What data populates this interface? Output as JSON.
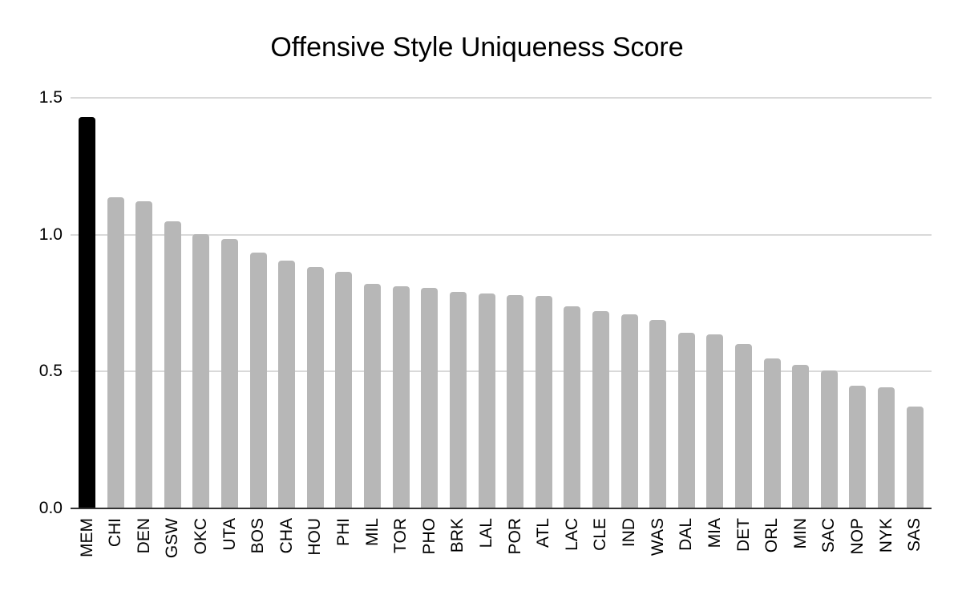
{
  "page": {
    "background": "#ffffff"
  },
  "colors": {
    "highlight_bar": "#000000",
    "bar": "#b7b7b7",
    "gridline": "#d9d9d9",
    "axis_line": "#333333",
    "label_text": "#000000"
  },
  "chart_data": {
    "type": "bar",
    "title": "Offensive Style Uniqueness Score",
    "xlabel": "",
    "ylabel": "",
    "ylim": [
      0,
      1.5
    ],
    "grid": true,
    "legend": false,
    "highlighted_category": "MEM",
    "yticks": [
      {
        "label": "0.0",
        "value": 0.0
      },
      {
        "label": "0.5",
        "value": 0.5
      },
      {
        "label": "1.0",
        "value": 1.0
      },
      {
        "label": "1.5",
        "value": 1.5
      }
    ],
    "categories": [
      "MEM",
      "CHI",
      "DEN",
      "GSW",
      "OKC",
      "UTA",
      "BOS",
      "CHA",
      "HOU",
      "PHI",
      "MIL",
      "TOR",
      "PHO",
      "BRK",
      "LAL",
      "POR",
      "ATL",
      "LAC",
      "CLE",
      "IND",
      "WAS",
      "DAL",
      "MIA",
      "DET",
      "ORL",
      "MIN",
      "SAC",
      "NOP",
      "NYK",
      "SAS"
    ],
    "values": [
      1.43,
      1.137,
      1.122,
      1.049,
      1.003,
      0.983,
      0.936,
      0.906,
      0.882,
      0.865,
      0.82,
      0.812,
      0.805,
      0.79,
      0.784,
      0.779,
      0.775,
      0.737,
      0.722,
      0.708,
      0.688,
      0.643,
      0.636,
      0.601,
      0.548,
      0.524,
      0.503,
      0.448,
      0.443,
      0.371
    ]
  }
}
